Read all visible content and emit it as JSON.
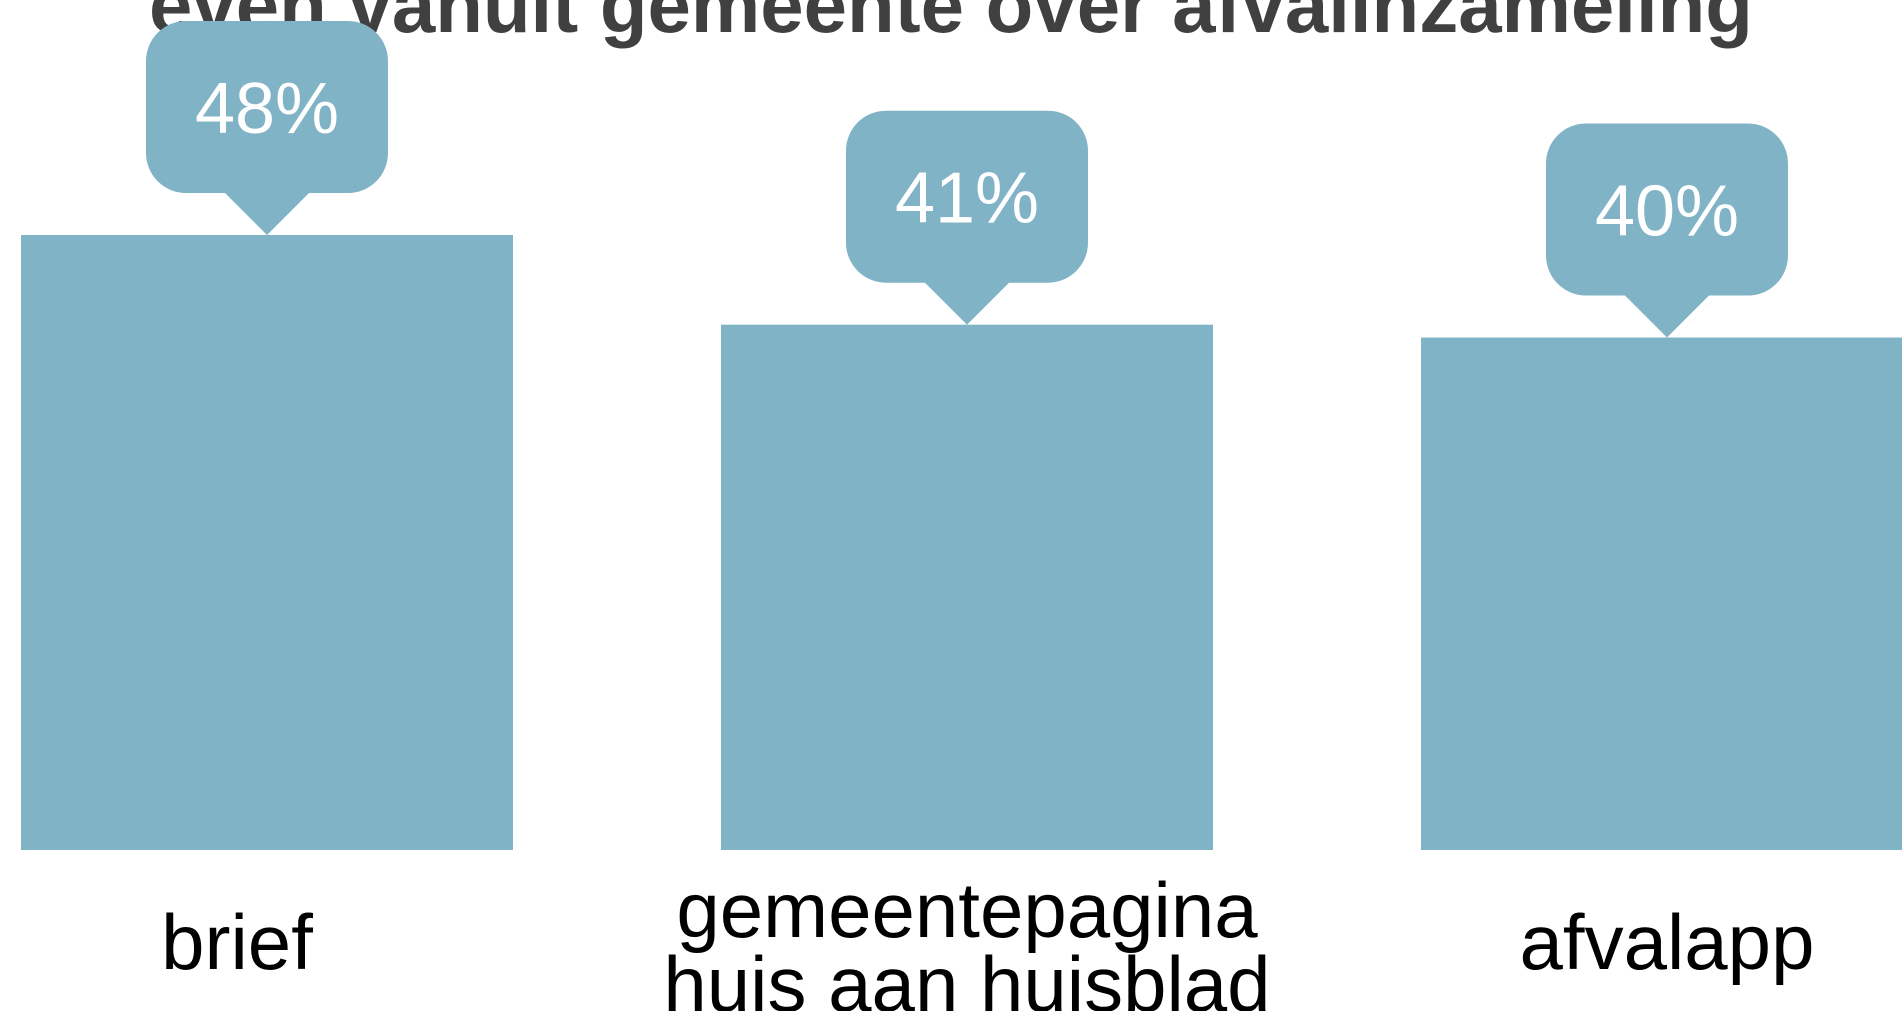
{
  "chart_data": {
    "type": "bar",
    "title": "even vanuit gemeente over afvalinzameling",
    "categories": [
      "brief",
      "gemeentepagina huis aan huisblad",
      "afvalapp"
    ],
    "category_lines": [
      [
        "brief"
      ],
      [
        "gemeentepagina",
        "huis aan huisblad"
      ],
      [
        "afvalapp"
      ]
    ],
    "values": [
      48,
      41,
      40
    ],
    "data_labels": [
      "48%",
      "41%",
      "40%"
    ],
    "value_unit": "%",
    "ylim": [
      0,
      48
    ],
    "grid": false,
    "legend": "none",
    "colors": {
      "bar": "#80b3c6",
      "callout": "#80b3c6",
      "callout_text": "#ffffff",
      "title": "#404040",
      "category_text": "#000000"
    }
  }
}
